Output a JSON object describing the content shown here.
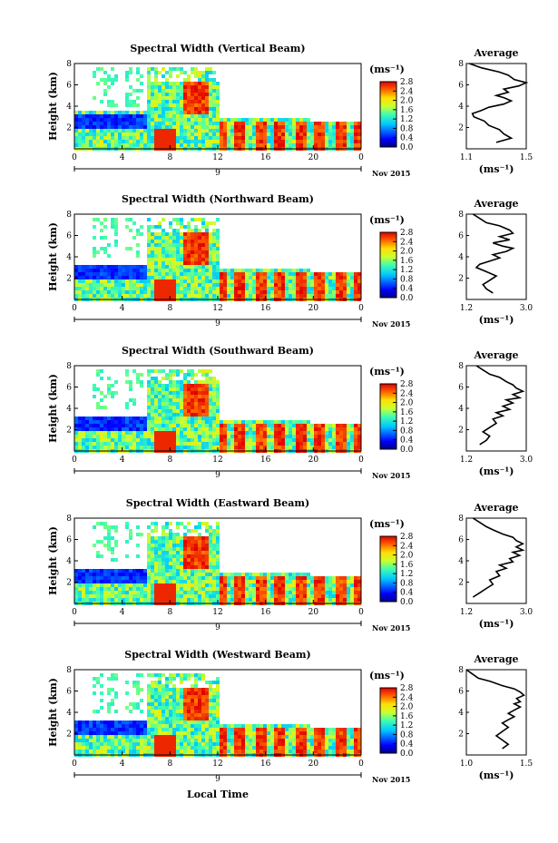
{
  "figure": {
    "xlabel": "Local Time",
    "date_label": "Nov 2015",
    "day_label": "9",
    "cbar_unit": "(ms⁻¹)",
    "avg_title": "Average",
    "avg_unit": "(ms⁻¹)",
    "ylabel": "Height (km)"
  },
  "chart_data": [
    {
      "type": "heatmap",
      "title": "Spectral Width (Vertical Beam)",
      "xlim": [
        0,
        24
      ],
      "ylim": [
        0,
        8
      ],
      "xticks": [
        "0",
        "4",
        "8",
        "12",
        "16",
        "20",
        "0"
      ],
      "yticks": [
        "2",
        "4",
        "6",
        "8"
      ],
      "colorbar": {
        "min": 0.0,
        "max": 2.8,
        "ticks": [
          "2.8",
          "2.4",
          "2.0",
          "1.6",
          "1.2",
          "0.8",
          "0.4",
          "0.0"
        ]
      },
      "profile": {
        "type": "line",
        "title": "Average",
        "xlim": [
          1.1,
          1.5
        ],
        "xticks": [
          "1.1",
          "1.5"
        ],
        "yticks": [
          "2",
          "4",
          "6",
          "8"
        ],
        "x": [
          1.3,
          1.4,
          1.35,
          1.32,
          1.25,
          1.22,
          1.15,
          1.14,
          1.2,
          1.25,
          1.35,
          1.4,
          1.35,
          1.3,
          1.38,
          1.35,
          1.45,
          1.5,
          1.42,
          1.38,
          1.32,
          1.2,
          1.12
        ],
        "y": [
          0.6,
          1.0,
          1.4,
          1.8,
          2.2,
          2.6,
          3.0,
          3.3,
          3.6,
          3.9,
          4.2,
          4.5,
          4.8,
          5.0,
          5.3,
          5.6,
          5.9,
          6.2,
          6.5,
          6.9,
          7.2,
          7.6,
          8.0
        ]
      }
    },
    {
      "type": "heatmap",
      "title": "Spectral Width (Northward Beam)",
      "xlim": [
        0,
        24
      ],
      "ylim": [
        0,
        8
      ],
      "xticks": [
        "0",
        "4",
        "8",
        "12",
        "16",
        "20",
        "0"
      ],
      "yticks": [
        "2",
        "4",
        "6",
        "8"
      ],
      "colorbar": {
        "min": 0.0,
        "max": 2.8,
        "ticks": [
          "2.8",
          "2.4",
          "2.0",
          "1.6",
          "1.2",
          "0.8",
          "0.4",
          "0.0"
        ]
      },
      "profile": {
        "type": "line",
        "title": "Average",
        "xlim": [
          1.2,
          3.0
        ],
        "xticks": [
          "1.2",
          "3.0"
        ],
        "yticks": [
          "2",
          "4",
          "6",
          "8"
        ],
        "x": [
          2.0,
          1.8,
          1.7,
          1.9,
          2.1,
          1.8,
          1.5,
          1.6,
          1.9,
          2.2,
          2.0,
          2.4,
          2.6,
          2.3,
          2.0,
          2.5,
          2.2,
          2.6,
          2.5,
          2.2,
          1.8,
          1.6,
          1.4
        ],
        "y": [
          0.6,
          1.0,
          1.4,
          1.8,
          2.2,
          2.6,
          3.0,
          3.3,
          3.6,
          3.9,
          4.2,
          4.5,
          4.8,
          5.0,
          5.3,
          5.6,
          5.9,
          6.2,
          6.5,
          6.9,
          7.2,
          7.6,
          8.0
        ]
      }
    },
    {
      "type": "heatmap",
      "title": "Spectral Width (Southward Beam)",
      "xlim": [
        0,
        24
      ],
      "ylim": [
        0,
        8
      ],
      "xticks": [
        "0",
        "4",
        "8",
        "12",
        "16",
        "20",
        "0"
      ],
      "yticks": [
        "2",
        "4",
        "6",
        "8"
      ],
      "colorbar": {
        "min": 0.0,
        "max": 2.8,
        "ticks": [
          "2.8",
          "2.4",
          "2.0",
          "1.6",
          "1.2",
          "0.8",
          "0.4",
          "0.0"
        ]
      },
      "profile": {
        "type": "line",
        "title": "Average",
        "xlim": [
          1.2,
          3.0
        ],
        "xticks": [
          "1.2",
          "3.0"
        ],
        "yticks": [
          "2",
          "4",
          "6",
          "8"
        ],
        "x": [
          1.6,
          1.8,
          1.9,
          1.7,
          1.9,
          2.1,
          2.0,
          2.3,
          2.1,
          2.5,
          2.3,
          2.6,
          2.4,
          2.8,
          2.6,
          2.9,
          2.7,
          2.6,
          2.4,
          2.2,
          1.9,
          1.7,
          1.5
        ],
        "y": [
          0.6,
          1.0,
          1.4,
          1.8,
          2.2,
          2.6,
          3.0,
          3.3,
          3.6,
          3.9,
          4.2,
          4.5,
          4.8,
          5.0,
          5.3,
          5.6,
          5.9,
          6.2,
          6.5,
          6.9,
          7.2,
          7.6,
          8.0
        ]
      }
    },
    {
      "type": "heatmap",
      "title": "Spectral Width (Eastward Beam)",
      "xlim": [
        0,
        24
      ],
      "ylim": [
        0,
        8
      ],
      "xticks": [
        "0",
        "4",
        "8",
        "12",
        "16",
        "20",
        "0"
      ],
      "yticks": [
        "2",
        "4",
        "6",
        "8"
      ],
      "colorbar": {
        "min": 0.0,
        "max": 2.8,
        "ticks": [
          "2.8",
          "2.4",
          "2.0",
          "1.6",
          "1.2",
          "0.8",
          "0.4",
          "0.0"
        ]
      },
      "profile": {
        "type": "line",
        "title": "Average",
        "xlim": [
          1.2,
          3.0
        ],
        "xticks": [
          "1.2",
          "3.0"
        ],
        "yticks": [
          "2",
          "4",
          "6",
          "8"
        ],
        "x": [
          1.4,
          1.6,
          1.8,
          2.0,
          1.9,
          2.2,
          2.1,
          2.4,
          2.2,
          2.6,
          2.5,
          2.8,
          2.6,
          2.9,
          2.7,
          2.9,
          2.7,
          2.6,
          2.3,
          2.0,
          1.8,
          1.6,
          1.4
        ],
        "y": [
          0.6,
          1.0,
          1.4,
          1.8,
          2.2,
          2.6,
          3.0,
          3.3,
          3.6,
          3.9,
          4.2,
          4.5,
          4.8,
          5.0,
          5.3,
          5.6,
          5.9,
          6.2,
          6.5,
          6.9,
          7.2,
          7.6,
          8.0
        ]
      }
    },
    {
      "type": "heatmap",
      "title": "Spectral Width (Westward Beam)",
      "xlim": [
        0,
        24
      ],
      "ylim": [
        0,
        8
      ],
      "xticks": [
        "0",
        "4",
        "8",
        "12",
        "16",
        "20",
        "0"
      ],
      "yticks": [
        "2",
        "4",
        "6",
        "8"
      ],
      "colorbar": {
        "min": 0.0,
        "max": 2.8,
        "ticks": [
          "2.8",
          "2.4",
          "2.0",
          "1.6",
          "1.2",
          "0.8",
          "0.4",
          "0.0"
        ]
      },
      "profile": {
        "type": "line",
        "title": "Average",
        "xlim": [
          1.0,
          1.5
        ],
        "xticks": [
          "1.0",
          "1.5"
        ],
        "yticks": [
          "2",
          "4",
          "6",
          "8"
        ],
        "x": [
          1.3,
          1.35,
          1.3,
          1.25,
          1.3,
          1.35,
          1.3,
          1.35,
          1.4,
          1.35,
          1.4,
          1.45,
          1.4,
          1.45,
          1.42,
          1.48,
          1.45,
          1.4,
          1.3,
          1.2,
          1.1,
          1.05,
          1.0
        ],
        "y": [
          0.6,
          1.0,
          1.4,
          1.8,
          2.2,
          2.6,
          3.0,
          3.3,
          3.6,
          3.9,
          4.2,
          4.5,
          4.8,
          5.0,
          5.3,
          5.6,
          5.9,
          6.2,
          6.5,
          6.9,
          7.2,
          7.6,
          8.0
        ]
      }
    }
  ]
}
